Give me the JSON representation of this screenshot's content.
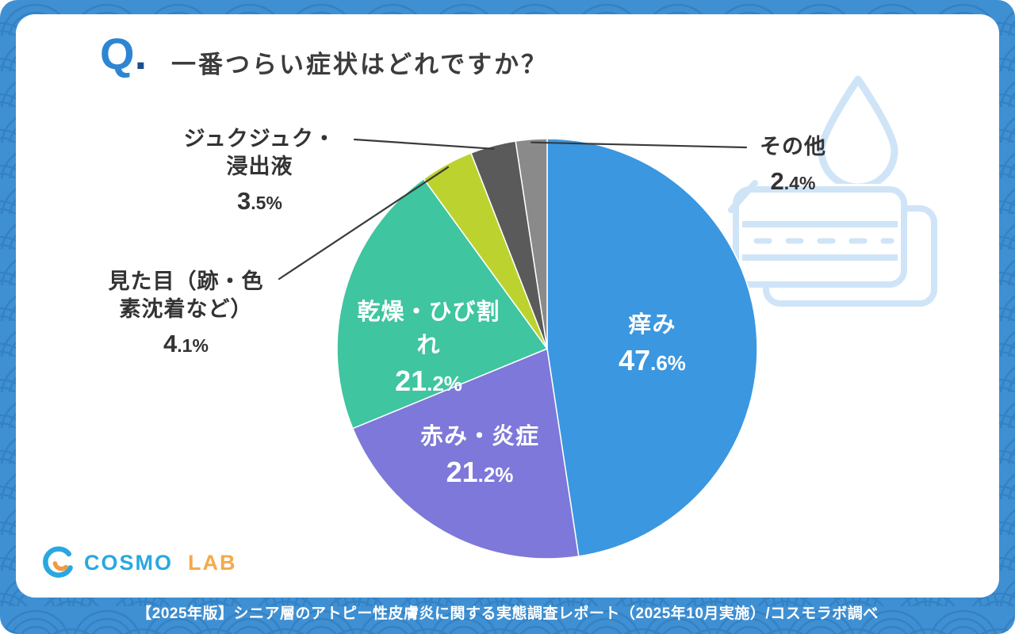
{
  "header": {
    "q_letter": "Q",
    "q_dot": ".",
    "title": "一番つらい症状はどれですか？"
  },
  "chart_data": {
    "type": "pie",
    "title": "一番つらい症状はどれですか？",
    "unit": "%",
    "start_angle": "top",
    "direction": "clockwise",
    "total": 100.0,
    "slices": [
      {
        "key": "itching",
        "label": "痒み",
        "label_lines": [
          "痒み"
        ],
        "value": 47.6,
        "color": "#3b97e0",
        "label_position": "inside"
      },
      {
        "key": "redness",
        "label": "赤み・炎症",
        "label_lines": [
          "赤み・炎症"
        ],
        "value": 21.2,
        "color": "#7d78d9",
        "label_position": "inside"
      },
      {
        "key": "dryness",
        "label": "乾燥・ひび割れ",
        "label_lines": [
          "乾燥・ひび割れ"
        ],
        "value": 21.2,
        "color": "#3fc5a0",
        "label_position": "inside"
      },
      {
        "key": "appearance",
        "label": "見た目（跡・色素沈着など）",
        "label_lines": [
          "見た目（跡・色",
          "素沈着など）"
        ],
        "value": 4.1,
        "color": "#bcd32f",
        "label_position": "outside-left"
      },
      {
        "key": "exudate",
        "label": "ジュクジュク・浸出液",
        "label_lines": [
          "ジュクジュク・",
          "浸出液"
        ],
        "value": 3.5,
        "color": "#5a5a5a",
        "label_position": "outside-left"
      },
      {
        "key": "other",
        "label": "その他",
        "label_lines": [
          "その他"
        ],
        "value": 2.4,
        "color": "#8a8a8a",
        "label_position": "outside-right"
      }
    ]
  },
  "icons": {
    "watermark_drop": "water-drop-outline",
    "watermark_skin": "skin-cross-section-outline",
    "logo_mark": "cosmo-circle-mark"
  },
  "colors": {
    "background_blue": "#3f90d3",
    "wave_line": "#2e7abc",
    "accent_blue": "#2c86d3",
    "logo_blue": "#29a8e0",
    "logo_orange": "#f6a94a",
    "watermark_blue": "#cfe4f7"
  },
  "logo": {
    "cosmo": "COSMO",
    "lab": "LAB"
  },
  "footer": {
    "source": "【2025年版】シニア層のアトピー性皮膚炎に関する実態調査レポート（2025年10月実施）/コスモラボ調べ"
  }
}
